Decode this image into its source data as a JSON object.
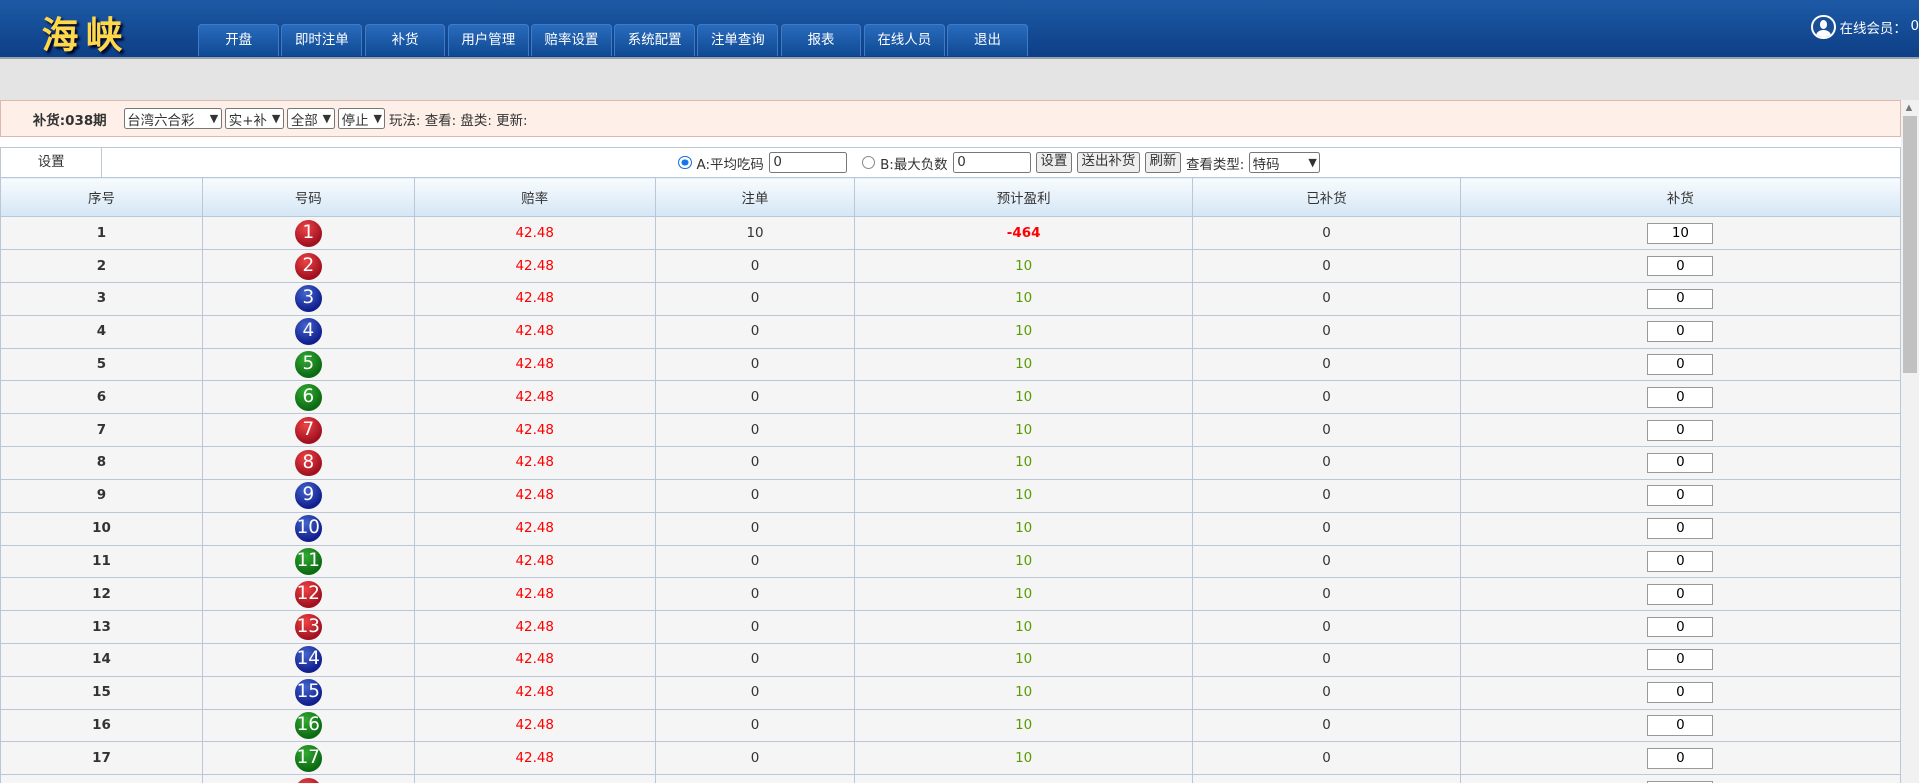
{
  "header": {
    "logo": "海峡",
    "nav": [
      "开盘",
      "即时注单",
      "补货",
      "用户管理",
      "赔率设置",
      "系统配置",
      "注单查询",
      "报表",
      "在线人员",
      "退出"
    ],
    "online_label": "在线会员：",
    "online_count": "0"
  },
  "filter": {
    "title": "补货:038期",
    "lottery": "台湾六合彩",
    "mode": "实+补",
    "scope": "全部",
    "status": "停止",
    "info": "玩法: 查看: 盘类: 更新:"
  },
  "settings": {
    "caption": "设置",
    "optA_label": "A:平均吃码",
    "optA_value": "0",
    "optA_selected": true,
    "optB_label": "B:最大负数",
    "optB_value": "0",
    "optB_selected": false,
    "set_btn": "设置",
    "send_btn": "送出补货",
    "refresh_btn": "刷新",
    "view_type_label": "查看类型:",
    "view_type": "特码"
  },
  "table": {
    "columns": [
      "序号",
      "号码",
      "赔率",
      "注单",
      "预计盈利",
      "已补货",
      "补货"
    ],
    "colors": {
      "red": "#a01020",
      "blue": "#111f8e",
      "green": "#0c6a12"
    },
    "rows": [
      {
        "no": "1",
        "ball": "1",
        "color": "red",
        "odds": "42.48",
        "bets": "10",
        "profit": "-464",
        "filled": "0",
        "input": "10"
      },
      {
        "no": "2",
        "ball": "2",
        "color": "red",
        "odds": "42.48",
        "bets": "0",
        "profit": "10",
        "filled": "0",
        "input": "0"
      },
      {
        "no": "3",
        "ball": "3",
        "color": "blue",
        "odds": "42.48",
        "bets": "0",
        "profit": "10",
        "filled": "0",
        "input": "0"
      },
      {
        "no": "4",
        "ball": "4",
        "color": "blue",
        "odds": "42.48",
        "bets": "0",
        "profit": "10",
        "filled": "0",
        "input": "0"
      },
      {
        "no": "5",
        "ball": "5",
        "color": "green",
        "odds": "42.48",
        "bets": "0",
        "profit": "10",
        "filled": "0",
        "input": "0"
      },
      {
        "no": "6",
        "ball": "6",
        "color": "green",
        "odds": "42.48",
        "bets": "0",
        "profit": "10",
        "filled": "0",
        "input": "0"
      },
      {
        "no": "7",
        "ball": "7",
        "color": "red",
        "odds": "42.48",
        "bets": "0",
        "profit": "10",
        "filled": "0",
        "input": "0"
      },
      {
        "no": "8",
        "ball": "8",
        "color": "red",
        "odds": "42.48",
        "bets": "0",
        "profit": "10",
        "filled": "0",
        "input": "0"
      },
      {
        "no": "9",
        "ball": "9",
        "color": "blue",
        "odds": "42.48",
        "bets": "0",
        "profit": "10",
        "filled": "0",
        "input": "0"
      },
      {
        "no": "10",
        "ball": "10",
        "color": "blue",
        "odds": "42.48",
        "bets": "0",
        "profit": "10",
        "filled": "0",
        "input": "0"
      },
      {
        "no": "11",
        "ball": "11",
        "color": "green",
        "odds": "42.48",
        "bets": "0",
        "profit": "10",
        "filled": "0",
        "input": "0"
      },
      {
        "no": "12",
        "ball": "12",
        "color": "red",
        "odds": "42.48",
        "bets": "0",
        "profit": "10",
        "filled": "0",
        "input": "0"
      },
      {
        "no": "13",
        "ball": "13",
        "color": "red",
        "odds": "42.48",
        "bets": "0",
        "profit": "10",
        "filled": "0",
        "input": "0"
      },
      {
        "no": "14",
        "ball": "14",
        "color": "blue",
        "odds": "42.48",
        "bets": "0",
        "profit": "10",
        "filled": "0",
        "input": "0"
      },
      {
        "no": "15",
        "ball": "15",
        "color": "blue",
        "odds": "42.48",
        "bets": "0",
        "profit": "10",
        "filled": "0",
        "input": "0"
      },
      {
        "no": "16",
        "ball": "16",
        "color": "green",
        "odds": "42.48",
        "bets": "0",
        "profit": "10",
        "filled": "0",
        "input": "0"
      },
      {
        "no": "17",
        "ball": "17",
        "color": "green",
        "odds": "42.48",
        "bets": "0",
        "profit": "10",
        "filled": "0",
        "input": "0"
      },
      {
        "no": "",
        "ball": "",
        "color": "red",
        "odds": "",
        "bets": "",
        "profit": "",
        "filled": "",
        "input": ""
      }
    ]
  }
}
